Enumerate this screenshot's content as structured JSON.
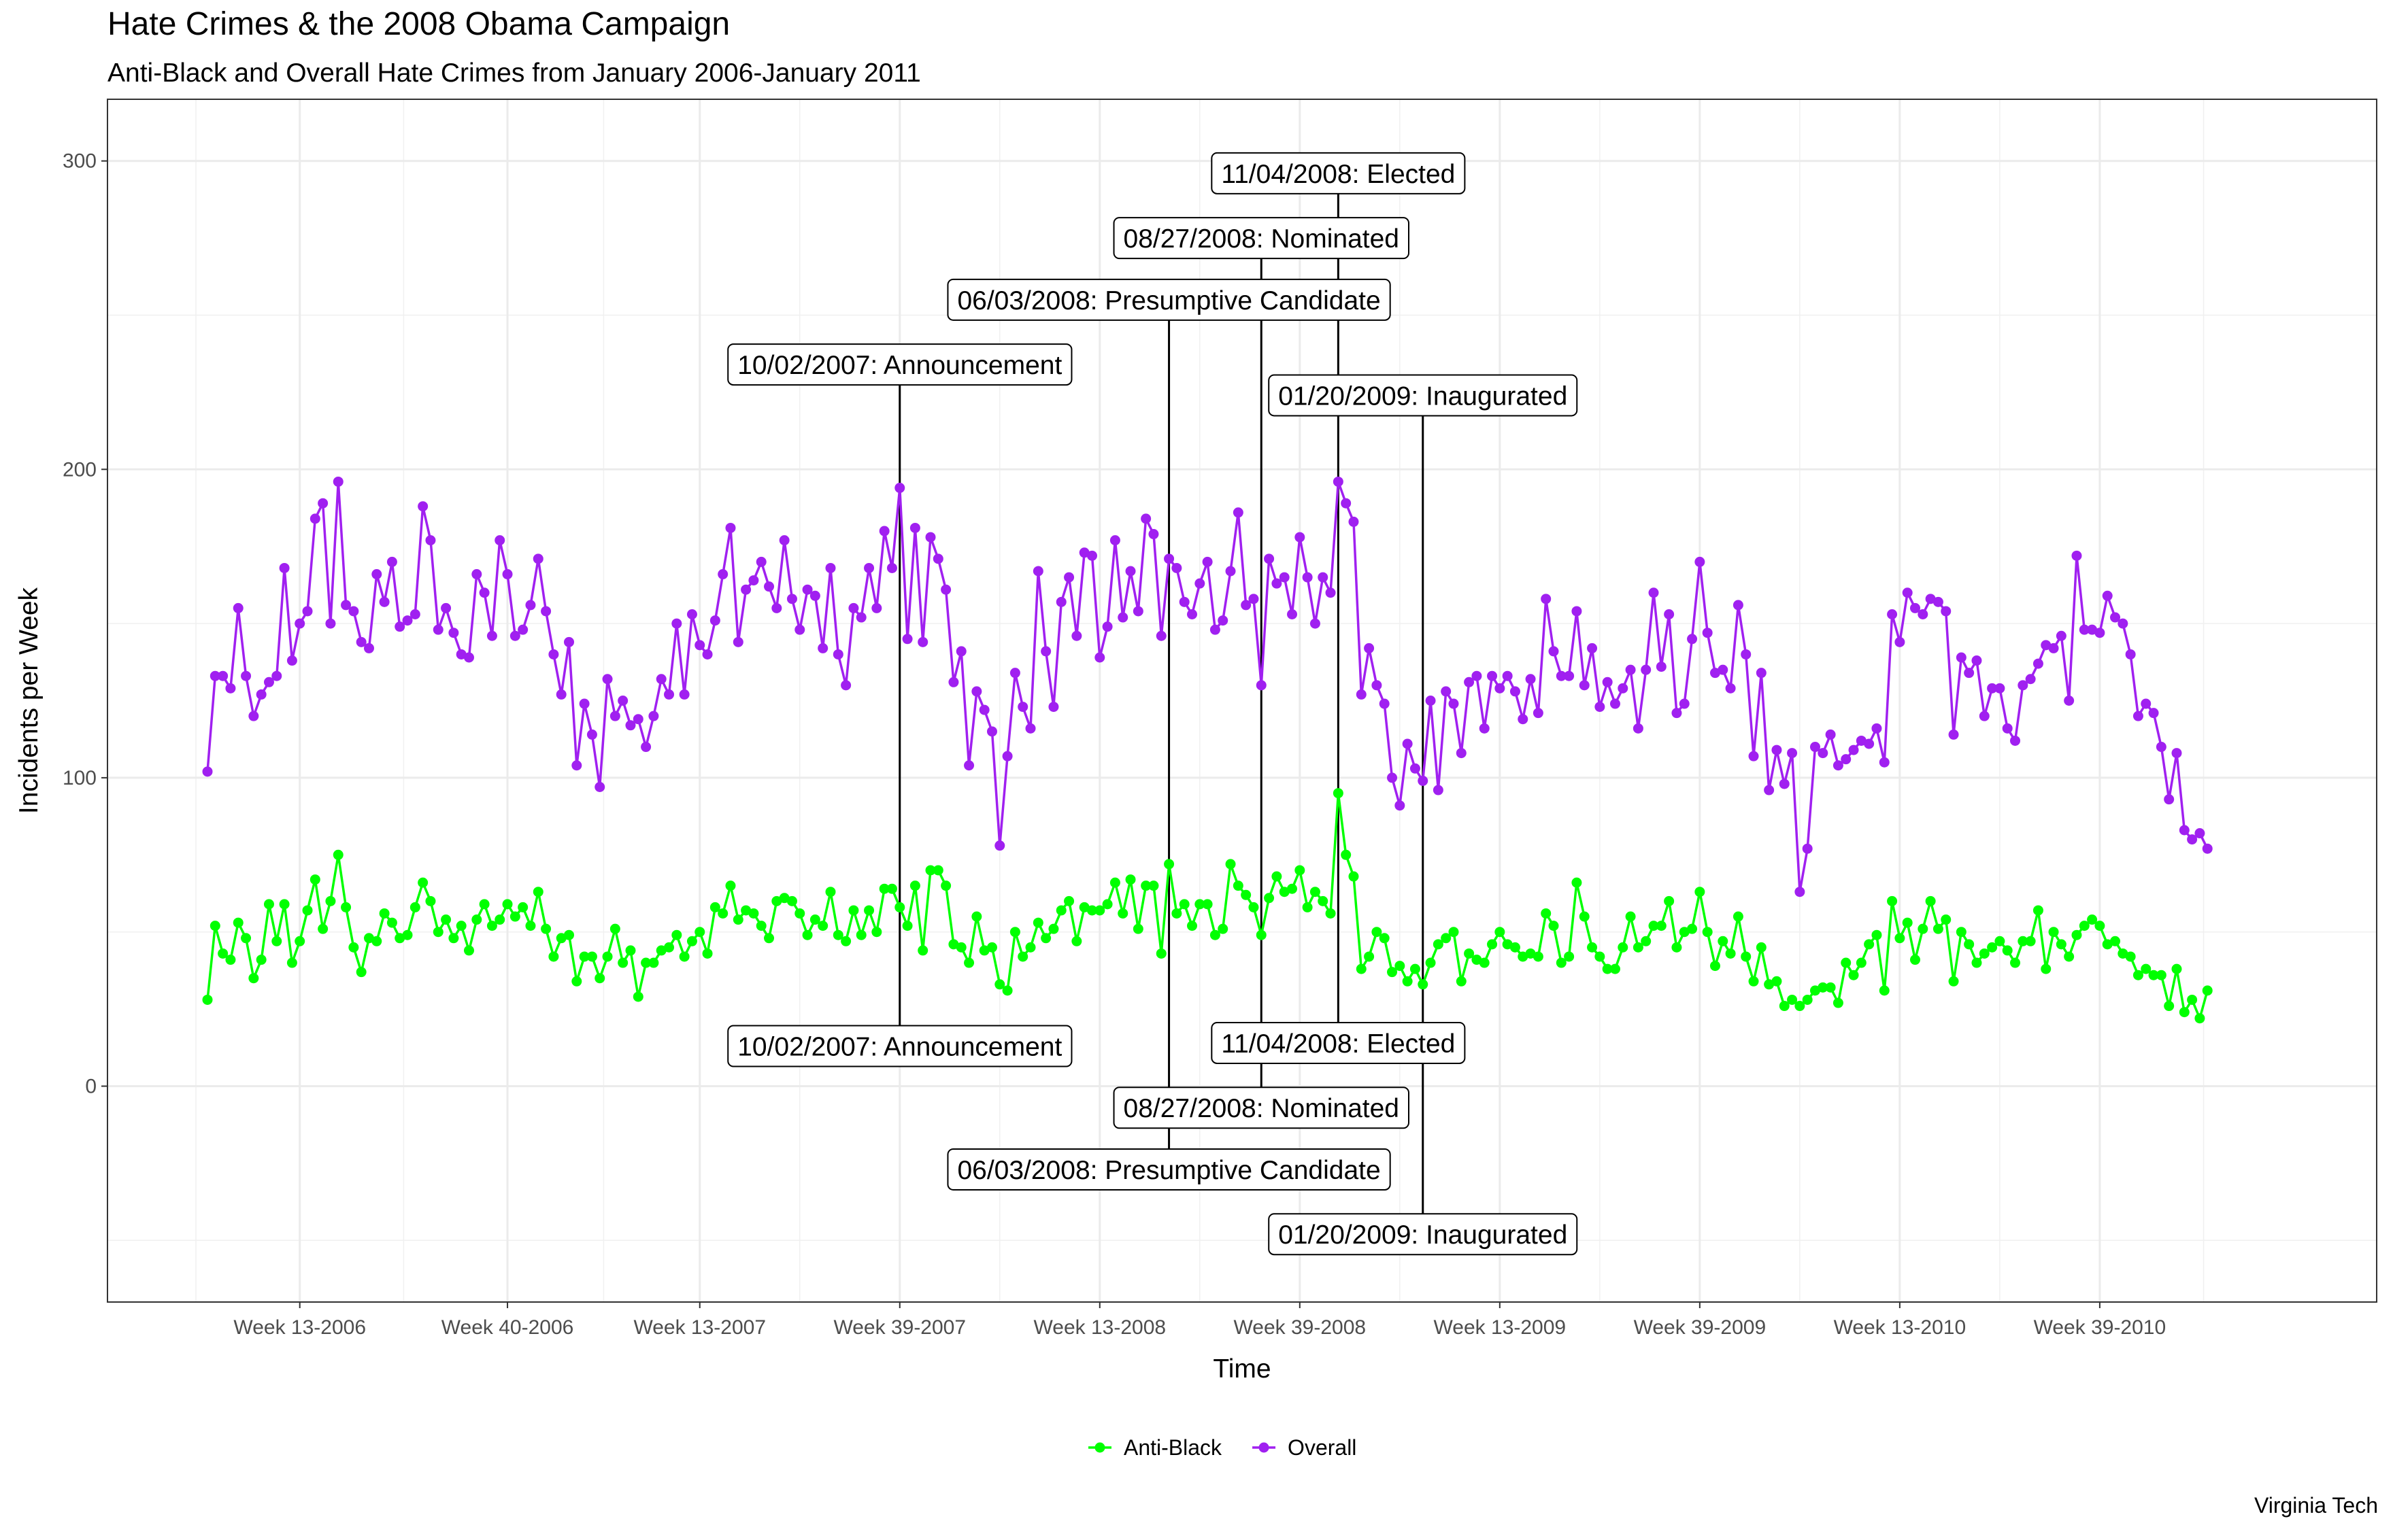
{
  "chart_data": {
    "type": "line",
    "title": "Hate Crimes & the 2008 Obama Campaign",
    "subtitle": "Anti-Black and Overall Hate Crimes from January 2006-January 2011",
    "caption": "Virginia Tech",
    "xlabel": "Time",
    "ylabel": "Incidents per Week",
    "x_tick_labels": [
      "Week 13-2006",
      "Week 40-2006",
      "Week 13-2007",
      "Week 39-2007",
      "Week 13-2008",
      "Week 39-2008",
      "Week 13-2009",
      "Week 39-2009",
      "Week 13-2010",
      "Week 39-2010"
    ],
    "x_tick_positions": [
      13,
      40,
      65,
      91,
      117,
      143,
      169,
      195,
      221,
      247
    ],
    "y_ticks": [
      0,
      100,
      200,
      300
    ],
    "ylim": [
      -70,
      320
    ],
    "xlim": [
      -12,
      283
    ],
    "grid": true,
    "legend_position": "bottom",
    "series": [
      {
        "name": "Anti-Black",
        "color": "#00ff00",
        "values": [
          28,
          52,
          43,
          41,
          53,
          48,
          35,
          41,
          59,
          47,
          59,
          40,
          47,
          57,
          67,
          51,
          60,
          75,
          58,
          45,
          37,
          48,
          47,
          56,
          53,
          48,
          49,
          58,
          66,
          60,
          50,
          54,
          48,
          52,
          44,
          54,
          59,
          52,
          54,
          59,
          55,
          58,
          52,
          63,
          51,
          42,
          48,
          49,
          34,
          42,
          42,
          35,
          42,
          51,
          40,
          44,
          29,
          40,
          40,
          44,
          45,
          49,
          42,
          47,
          50,
          43,
          58,
          56,
          65,
          54,
          57,
          56,
          52,
          48,
          60,
          61,
          60,
          56,
          49,
          54,
          52,
          63,
          49,
          47,
          57,
          49,
          57,
          50,
          64,
          64,
          58,
          52,
          65,
          44,
          70,
          70,
          65,
          46,
          45,
          40,
          55,
          44,
          45,
          33,
          31,
          50,
          42,
          45,
          53,
          48,
          51,
          57,
          60,
          47,
          58,
          57,
          57,
          59,
          66,
          56,
          67,
          51,
          65,
          65,
          43,
          72,
          56,
          59,
          52,
          59,
          59,
          49,
          51,
          72,
          65,
          62,
          58,
          49,
          61,
          68,
          63,
          64,
          70,
          58,
          63,
          60,
          56,
          95,
          75,
          68,
          38,
          42,
          50,
          48,
          37,
          39,
          34,
          38,
          33,
          40,
          46,
          48,
          50,
          34,
          43,
          41,
          40,
          46,
          50,
          46,
          45,
          42,
          43,
          42,
          56,
          52,
          40,
          42,
          66,
          55,
          45,
          42,
          38,
          38,
          45,
          55,
          45,
          47,
          52,
          52,
          60,
          45,
          50,
          51,
          63,
          50,
          39,
          47,
          43,
          55,
          42,
          34,
          45,
          33,
          34,
          26,
          28,
          26,
          28,
          31,
          32,
          32,
          27,
          40,
          36,
          40,
          46,
          49,
          31,
          60,
          48,
          53,
          41,
          51,
          60,
          51,
          54,
          34,
          50,
          46,
          40,
          43,
          45,
          47,
          44,
          40,
          47,
          47,
          57,
          38,
          50,
          46,
          42,
          49,
          52,
          54,
          52,
          46,
          47,
          43,
          42,
          36,
          38,
          36,
          36,
          26,
          38,
          24,
          28,
          22,
          31
        ]
      },
      {
        "name": "Overall",
        "color": "#a020f0",
        "values": [
          102,
          133,
          133,
          129,
          155,
          133,
          120,
          127,
          131,
          133,
          168,
          138,
          150,
          154,
          184,
          189,
          150,
          196,
          156,
          154,
          144,
          142,
          166,
          157,
          170,
          149,
          151,
          153,
          188,
          177,
          148,
          155,
          147,
          140,
          139,
          166,
          160,
          146,
          177,
          166,
          146,
          148,
          156,
          171,
          154,
          140,
          127,
          144,
          104,
          124,
          114,
          97,
          132,
          120,
          125,
          117,
          119,
          110,
          120,
          132,
          127,
          150,
          127,
          153,
          143,
          140,
          151,
          166,
          181,
          144,
          161,
          164,
          170,
          162,
          155,
          177,
          158,
          148,
          161,
          159,
          142,
          168,
          140,
          130,
          155,
          152,
          168,
          155,
          180,
          168,
          194,
          145,
          181,
          144,
          178,
          171,
          161,
          131,
          141,
          104,
          128,
          122,
          115,
          78,
          107,
          134,
          123,
          116,
          167,
          141,
          123,
          157,
          165,
          146,
          173,
          172,
          139,
          149,
          177,
          152,
          167,
          154,
          184,
          179,
          146,
          171,
          168,
          157,
          153,
          163,
          170,
          148,
          151,
          167,
          186,
          156,
          158,
          130,
          171,
          163,
          165,
          153,
          178,
          165,
          150,
          165,
          160,
          196,
          189,
          183,
          127,
          142,
          130,
          124,
          100,
          91,
          111,
          103,
          99,
          125,
          96,
          128,
          124,
          108,
          131,
          133,
          116,
          133,
          129,
          133,
          128,
          119,
          132,
          121,
          158,
          141,
          133,
          133,
          154,
          130,
          142,
          123,
          131,
          124,
          129,
          135,
          116,
          135,
          160,
          136,
          153,
          121,
          124,
          145,
          170,
          147,
          134,
          135,
          129,
          156,
          140,
          107,
          134,
          96,
          109,
          98,
          108,
          63,
          77,
          110,
          108,
          114,
          104,
          106,
          109,
          112,
          111,
          116,
          105,
          153,
          144,
          160,
          155,
          153,
          158,
          157,
          154,
          114,
          139,
          134,
          138,
          120,
          129,
          129,
          116,
          112,
          130,
          132,
          137,
          143,
          142,
          146,
          125,
          172,
          148,
          148,
          147,
          159,
          152,
          150,
          140,
          120,
          124,
          121,
          110,
          93,
          108,
          83,
          80,
          82,
          77
        ]
      }
    ],
    "annotations": [
      {
        "label": "10/02/2007: Announcement",
        "week": 91,
        "upper_y": 234,
        "lower_y": 13
      },
      {
        "label": "06/03/2008: Presumptive Candidate",
        "week": 126,
        "upper_y": 255,
        "lower_y": -27
      },
      {
        "label": "08/27/2008: Nominated",
        "week": 138,
        "upper_y": 275,
        "lower_y": -7
      },
      {
        "label": "11/04/2008: Elected",
        "week": 148,
        "upper_y": 296,
        "lower_y": 14
      },
      {
        "label": "01/20/2009: Inaugurated",
        "week": 159,
        "upper_y": 224,
        "lower_y": -48
      }
    ]
  }
}
